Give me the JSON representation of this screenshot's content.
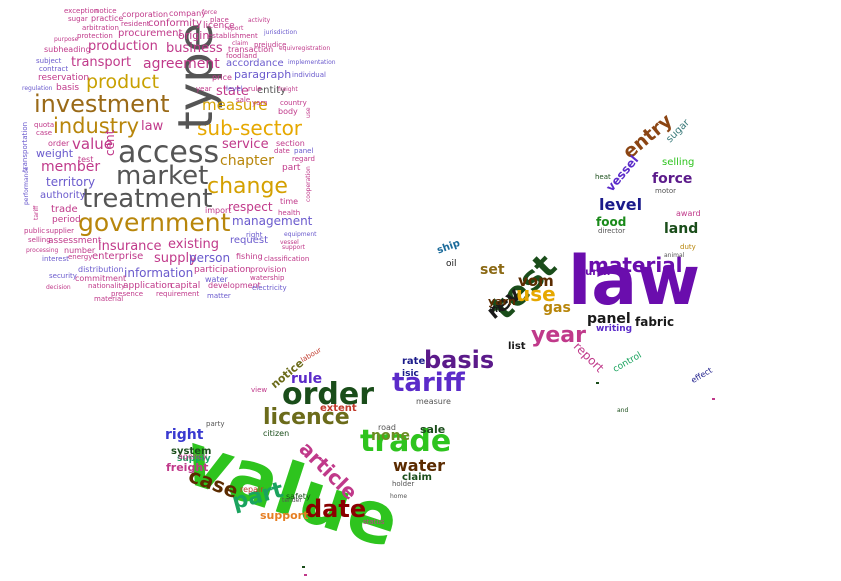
{
  "clouds": [
    {
      "name": "word-cloud-square",
      "words": [
        {
          "text": "investment",
          "color": "#9a6a18"
        },
        {
          "text": "access",
          "color": "#555555"
        },
        {
          "text": "industry",
          "color": "#b8860b"
        },
        {
          "text": "market",
          "color": "#555555"
        },
        {
          "text": "treatment",
          "color": "#555555"
        },
        {
          "text": "government",
          "color": "#b8860b"
        },
        {
          "text": "sub-sector",
          "color": "#e6a800"
        },
        {
          "text": "type",
          "color": "#555555"
        },
        {
          "text": "product",
          "color": "#c8a000"
        },
        {
          "text": "change",
          "color": "#d4a000"
        },
        {
          "text": "production",
          "color": "#c0398a"
        },
        {
          "text": "agreement",
          "color": "#c0398a"
        },
        {
          "text": "business",
          "color": "#c0398a"
        },
        {
          "text": "transport",
          "color": "#c0398a"
        },
        {
          "text": "measure",
          "color": "#d4a000"
        },
        {
          "text": "member",
          "color": "#c0398a"
        },
        {
          "text": "value",
          "color": "#c0398a"
        },
        {
          "text": "state",
          "color": "#c0398a"
        },
        {
          "text": "paragraph",
          "color": "#6a5acd"
        },
        {
          "text": "chapter",
          "color": "#b8860b"
        },
        {
          "text": "service",
          "color": "#c0398a"
        },
        {
          "text": "respect",
          "color": "#c0398a"
        },
        {
          "text": "management",
          "color": "#6a5acd"
        },
        {
          "text": "insurance",
          "color": "#c0398a"
        },
        {
          "text": "existing",
          "color": "#c0398a"
        },
        {
          "text": "information",
          "color": "#6a5acd"
        },
        {
          "text": "supply",
          "color": "#c0398a"
        },
        {
          "text": "person",
          "color": "#6a5acd"
        },
        {
          "text": "law",
          "color": "#c0398a"
        },
        {
          "text": "territory",
          "color": "#6a5acd"
        },
        {
          "text": "weight",
          "color": "#6a5acd"
        },
        {
          "text": "entity",
          "color": "#555555"
        },
        {
          "text": "accordance",
          "color": "#6a5acd"
        },
        {
          "text": "procurement",
          "color": "#c0398a"
        },
        {
          "text": "origin",
          "color": "#c0398a"
        },
        {
          "text": "conformity",
          "color": "#c0398a"
        },
        {
          "text": "cent",
          "color": "#c0398a"
        },
        {
          "text": "enterprise",
          "color": "#c0398a"
        },
        {
          "text": "request",
          "color": "#6a5acd"
        },
        {
          "text": "authority",
          "color": "#6a5acd"
        },
        {
          "text": "trade",
          "color": "#c0398a"
        },
        {
          "text": "assessment",
          "color": "#c0398a"
        },
        {
          "text": "period",
          "color": "#c0398a"
        },
        {
          "text": "participation",
          "color": "#c0398a"
        },
        {
          "text": "application",
          "color": "#c0398a"
        },
        {
          "text": "capital",
          "color": "#c0398a"
        },
        {
          "text": "development",
          "color": "#c0398a"
        },
        {
          "text": "distribution",
          "color": "#6a5acd"
        },
        {
          "text": "commitment",
          "color": "#c0398a"
        },
        {
          "text": "water",
          "color": "#6a5acd"
        },
        {
          "text": "fishing",
          "color": "#c0398a"
        },
        {
          "text": "provision",
          "color": "#c0398a"
        },
        {
          "text": "requirement",
          "color": "#c0398a"
        },
        {
          "text": "presence",
          "color": "#c0398a"
        },
        {
          "text": "matter",
          "color": "#6a5acd"
        },
        {
          "text": "licence",
          "color": "#c0398a"
        },
        {
          "text": "company",
          "color": "#c0398a"
        },
        {
          "text": "corporation",
          "color": "#c0398a"
        },
        {
          "text": "practice",
          "color": "#c0398a"
        },
        {
          "text": "sugar",
          "color": "#c0398a"
        },
        {
          "text": "exception",
          "color": "#c0398a"
        },
        {
          "text": "notice",
          "color": "#c0398a"
        },
        {
          "text": "resident",
          "color": "#c0398a"
        },
        {
          "text": "arbitration",
          "color": "#c0398a"
        },
        {
          "text": "protection",
          "color": "#c0398a"
        },
        {
          "text": "establishment",
          "color": "#c0398a"
        },
        {
          "text": "transaction",
          "color": "#c0398a"
        },
        {
          "text": "reservation",
          "color": "#c0398a"
        },
        {
          "text": "basis",
          "color": "#c0398a"
        },
        {
          "text": "subheading",
          "color": "#c0398a"
        },
        {
          "text": "subject",
          "color": "#6a5acd"
        },
        {
          "text": "contract",
          "color": "#6a5acd"
        },
        {
          "text": "price",
          "color": "#c0398a"
        },
        {
          "text": "year",
          "color": "#c0398a"
        },
        {
          "text": "level",
          "color": "#6a5acd"
        },
        {
          "text": "country",
          "color": "#c0398a"
        },
        {
          "text": "body",
          "color": "#c0398a"
        },
        {
          "text": "section",
          "color": "#c0398a"
        },
        {
          "text": "date",
          "color": "#c0398a"
        },
        {
          "text": "panel",
          "color": "#6a5acd"
        },
        {
          "text": "part",
          "color": "#c0398a"
        },
        {
          "text": "regard",
          "color": "#c0398a"
        },
        {
          "text": "time",
          "color": "#c0398a"
        },
        {
          "text": "health",
          "color": "#c0398a"
        },
        {
          "text": "equipment",
          "color": "#6a5acd"
        },
        {
          "text": "vessel",
          "color": "#c0398a"
        },
        {
          "text": "support",
          "color": "#c0398a"
        },
        {
          "text": "classification",
          "color": "#c0398a"
        },
        {
          "text": "electricity",
          "color": "#6a5acd"
        },
        {
          "text": "watership",
          "color": "#c0398a"
        },
        {
          "text": "energy",
          "color": "#c0398a"
        },
        {
          "text": "number",
          "color": "#c0398a"
        },
        {
          "text": "nationality",
          "color": "#c0398a"
        },
        {
          "text": "interest",
          "color": "#6a5acd"
        },
        {
          "text": "security",
          "color": "#6a5acd"
        },
        {
          "text": "processing",
          "color": "#c0398a"
        },
        {
          "text": "supplier",
          "color": "#c0398a"
        },
        {
          "text": "selling",
          "color": "#c0398a"
        },
        {
          "text": "public",
          "color": "#c0398a"
        },
        {
          "text": "transportation",
          "color": "#6a5acd"
        },
        {
          "text": "quota",
          "color": "#c0398a"
        },
        {
          "text": "case",
          "color": "#c0398a"
        },
        {
          "text": "test",
          "color": "#c0398a"
        },
        {
          "text": "order",
          "color": "#c0398a"
        },
        {
          "text": "regulation",
          "color": "#6a5acd"
        },
        {
          "text": "sale",
          "color": "#c0398a"
        },
        {
          "text": "purpose",
          "color": "#c0398a"
        },
        {
          "text": "food",
          "color": "#c0398a"
        },
        {
          "text": "land",
          "color": "#c0398a"
        },
        {
          "text": "rule",
          "color": "#c0398a"
        },
        {
          "text": "use",
          "color": "#c0398a"
        },
        {
          "text": "jurisdiction",
          "color": "#6a5acd"
        },
        {
          "text": "implementation",
          "color": "#6a5acd"
        },
        {
          "text": "individual",
          "color": "#6a5acd"
        },
        {
          "text": "freight",
          "color": "#c0398a"
        },
        {
          "text": "right",
          "color": "#6a5acd"
        },
        {
          "text": "yarn",
          "color": "#c0398a"
        },
        {
          "text": "place",
          "color": "#c0398a"
        },
        {
          "text": "claim",
          "color": "#c0398a"
        },
        {
          "text": "prejudice",
          "color": "#c0398a"
        },
        {
          "text": "material",
          "color": "#c0398a"
        },
        {
          "text": "decision",
          "color": "#c0398a"
        },
        {
          "text": "import",
          "color": "#c0398a"
        },
        {
          "text": "performance",
          "color": "#6a5acd"
        },
        {
          "text": "tariff",
          "color": "#c0398a"
        },
        {
          "text": "force",
          "color": "#c0398a"
        },
        {
          "text": "activity",
          "color": "#c0398a"
        },
        {
          "text": "equivregistration",
          "color": "#c0398a"
        },
        {
          "text": "cooperation",
          "color": "#c0398a"
        },
        {
          "text": "report",
          "color": "#c0398a"
        },
        {
          "text": "authorization",
          "color": "#c0398a"
        },
        {
          "text": "property",
          "color": "#c0398a"
        }
      ]
    },
    {
      "name": "word-cloud-map-shape",
      "words": [
        {
          "text": "value",
          "color": "#2ec41e"
        },
        {
          "text": "law",
          "color": "#6a0dad"
        },
        {
          "text": "order",
          "color": "#1a4d1a"
        },
        {
          "text": "trade",
          "color": "#2ec41e"
        },
        {
          "text": "basis",
          "color": "#5b1a8a"
        },
        {
          "text": "tariff",
          "color": "#5b2bc9"
        },
        {
          "text": "date",
          "color": "#8b0000"
        },
        {
          "text": "test",
          "color": "#1a4d1a"
        },
        {
          "text": "year",
          "color": "#c0398a"
        },
        {
          "text": "material",
          "color": "#6a0dad"
        },
        {
          "text": "licence",
          "color": "#6b6b1a"
        },
        {
          "text": "article",
          "color": "#c0398a"
        },
        {
          "text": "part",
          "color": "#1aa35e"
        },
        {
          "text": "case",
          "color": "#5b2b00"
        },
        {
          "text": "use",
          "color": "#e6a800"
        },
        {
          "text": "water",
          "color": "#5b2b00"
        },
        {
          "text": "panel",
          "color": "#1a1a1a"
        },
        {
          "text": "level",
          "color": "#1a1a8a"
        },
        {
          "text": "force",
          "color": "#5b1a8a"
        },
        {
          "text": "land",
          "color": "#1a4d1a"
        },
        {
          "text": "entry",
          "color": "#8b4513"
        },
        {
          "text": "rule",
          "color": "#5b2bc9"
        },
        {
          "text": "right",
          "color": "#3a3ad0"
        },
        {
          "text": "none",
          "color": "#6b8e23"
        },
        {
          "text": "sale",
          "color": "#1a4d1a"
        },
        {
          "text": "set",
          "color": "#8b6914"
        },
        {
          "text": "gas",
          "color": "#b8860b"
        },
        {
          "text": "rev",
          "color": "#1a1a1a"
        },
        {
          "text": "vom",
          "color": "#5b2b00"
        },
        {
          "text": "fabric",
          "color": "#1a1a1a"
        },
        {
          "text": "freight",
          "color": "#c0398a"
        },
        {
          "text": "system",
          "color": "#1a4d1a"
        },
        {
          "text": "supply",
          "color": "#1aa35e"
        },
        {
          "text": "support",
          "color": "#e67e22"
        },
        {
          "text": "notice",
          "color": "#6b6b1a"
        },
        {
          "text": "extent",
          "color": "#c0392b"
        },
        {
          "text": "claim",
          "color": "#1a4d1a"
        },
        {
          "text": "report",
          "color": "#c0398a"
        },
        {
          "text": "rate",
          "color": "#1a1a8a"
        },
        {
          "text": "list",
          "color": "#1a1a1a"
        },
        {
          "text": "selling",
          "color": "#2ec41e"
        },
        {
          "text": "food",
          "color": "#1a8a1a"
        },
        {
          "text": "vessel",
          "color": "#5b2bc9"
        },
        {
          "text": "sugar",
          "color": "#3a7a7a"
        },
        {
          "text": "writing",
          "color": "#5b2bc9"
        },
        {
          "text": "control",
          "color": "#1aa35e"
        },
        {
          "text": "ship",
          "color": "#1a6a9a"
        },
        {
          "text": "air",
          "color": "#1a1a1a"
        },
        {
          "text": "yarn",
          "color": "#5b2b00"
        },
        {
          "text": "durch",
          "color": "#6a0dad"
        },
        {
          "text": "isic",
          "color": "#1a1a8a"
        },
        {
          "text": "measure",
          "color": "#555555"
        },
        {
          "text": "citizen",
          "color": "#1a4d1a"
        },
        {
          "text": "agency",
          "color": "#c0398a"
        },
        {
          "text": "safety",
          "color": "#1a4d1a"
        },
        {
          "text": "repair",
          "color": "#c0392b"
        },
        {
          "text": "holder",
          "color": "#555555"
        },
        {
          "text": "status",
          "color": "#c0398a"
        },
        {
          "text": "road",
          "color": "#555555"
        },
        {
          "text": "oil",
          "color": "#1a1a1a"
        },
        {
          "text": "motor",
          "color": "#555555"
        },
        {
          "text": "director",
          "color": "#555555"
        },
        {
          "text": "award",
          "color": "#c0398a"
        },
        {
          "text": "duty",
          "color": "#b8860b"
        },
        {
          "text": "effect",
          "color": "#1a1a8a"
        },
        {
          "text": "party",
          "color": "#555555"
        },
        {
          "text": "labour",
          "color": "#c0392b"
        },
        {
          "text": "view",
          "color": "#c0398a"
        },
        {
          "text": "tender",
          "color": "#555555"
        },
        {
          "text": "home",
          "color": "#555555"
        },
        {
          "text": "animal",
          "color": "#555555"
        },
        {
          "text": "heat",
          "color": "#1a4d1a"
        },
        {
          "text": "and",
          "color": "#1a4d1a"
        }
      ]
    }
  ]
}
